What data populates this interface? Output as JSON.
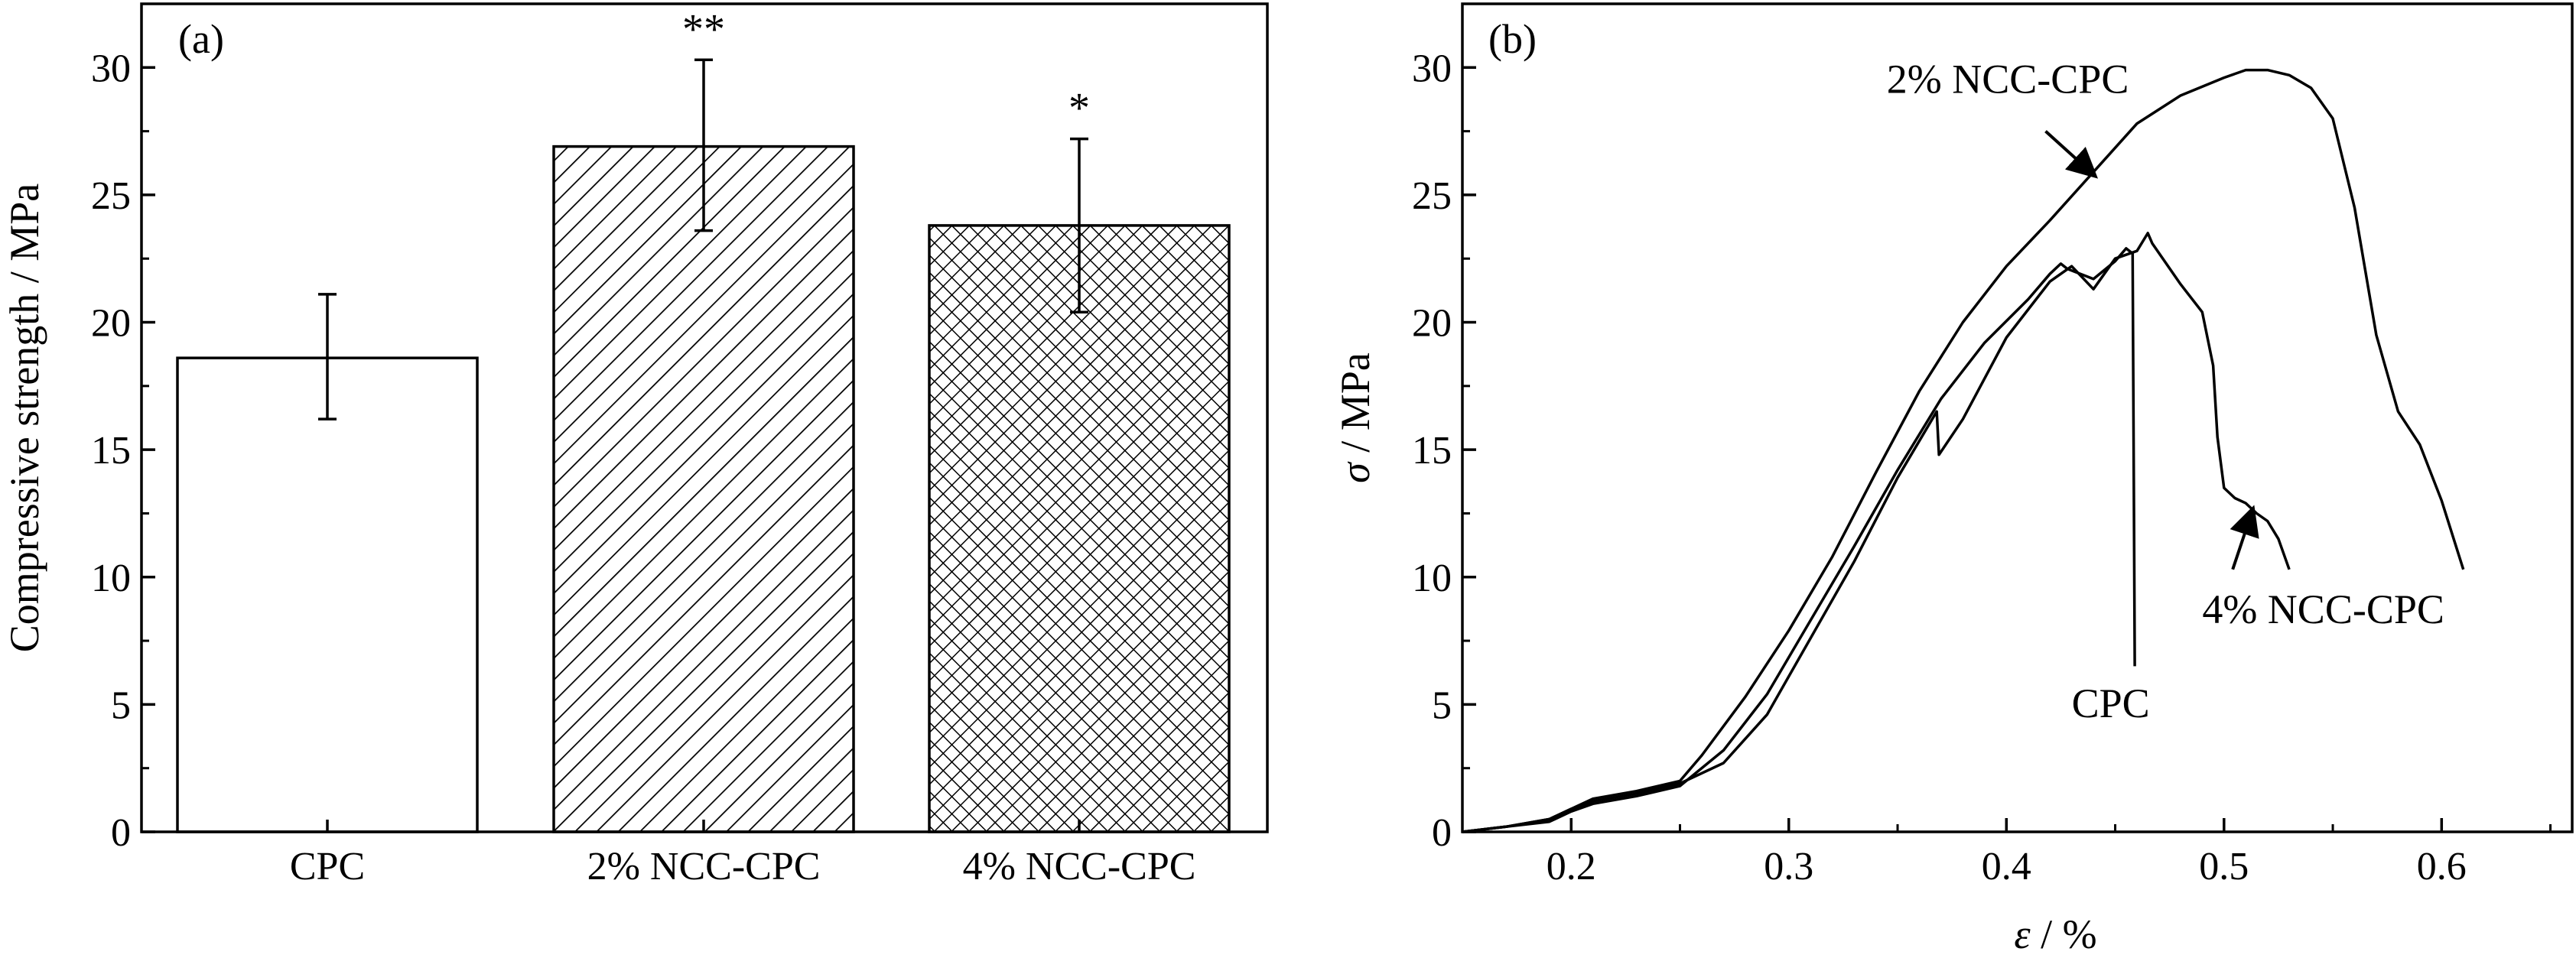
{
  "chart_data": [
    {
      "type": "bar",
      "panel_label": "(a)",
      "categories": [
        "CPC",
        "2% NCC-CPC",
        "4% NCC-CPC"
      ],
      "values": [
        18.6,
        26.9,
        23.8
      ],
      "error_low": [
        16.2,
        23.6,
        20.4
      ],
      "error_high": [
        21.1,
        30.3,
        27.2
      ],
      "significance": [
        "",
        "**",
        "*"
      ],
      "bar_fill": [
        "none",
        "diagonal-hatch",
        "cross-hatch"
      ],
      "ylabel": "Compressive strength / MPa",
      "xlabel": "",
      "ylim": [
        0,
        32.5
      ],
      "yticks": [
        0,
        5,
        10,
        15,
        20,
        25,
        30
      ],
      "grid": false,
      "colors": {
        "line": "#000000",
        "background": "#ffffff"
      }
    },
    {
      "type": "line",
      "panel_label": "(b)",
      "xlabel_symbol": "ε",
      "xlabel_unit": " / %",
      "ylabel_symbol": "σ",
      "ylabel_unit": " / MPa",
      "xlim": [
        0.15,
        0.66
      ],
      "ylim": [
        0,
        32.5
      ],
      "xticks": [
        0.2,
        0.3,
        0.4,
        0.5,
        0.6
      ],
      "yticks": [
        0,
        5,
        10,
        15,
        20,
        25,
        30
      ],
      "grid": false,
      "series": [
        {
          "name": "2% NCC-CPC",
          "x": [
            0.15,
            0.17,
            0.19,
            0.2,
            0.21,
            0.23,
            0.25,
            0.26,
            0.28,
            0.3,
            0.32,
            0.34,
            0.36,
            0.38,
            0.4,
            0.42,
            0.44,
            0.46,
            0.48,
            0.5,
            0.51,
            0.52,
            0.53,
            0.54,
            0.55,
            0.56,
            0.57,
            0.58,
            0.59,
            0.6,
            0.61
          ],
          "y": [
            0.0,
            0.2,
            0.5,
            0.9,
            1.3,
            1.6,
            2.0,
            3.0,
            5.3,
            7.9,
            10.8,
            14.1,
            17.3,
            20.0,
            22.2,
            24.0,
            25.9,
            27.8,
            28.9,
            29.6,
            29.9,
            29.9,
            29.7,
            29.2,
            28.0,
            24.5,
            19.5,
            16.5,
            15.2,
            13.0,
            10.3
          ]
        },
        {
          "name": "4% NCC-CPC",
          "x": [
            0.15,
            0.17,
            0.19,
            0.2,
            0.21,
            0.23,
            0.25,
            0.27,
            0.29,
            0.31,
            0.33,
            0.35,
            0.368,
            0.369,
            0.38,
            0.4,
            0.42,
            0.43,
            0.44,
            0.45,
            0.46,
            0.465,
            0.467,
            0.48,
            0.49,
            0.495,
            0.497,
            0.5,
            0.505,
            0.51,
            0.515,
            0.52,
            0.525,
            0.53
          ],
          "y": [
            0.0,
            0.2,
            0.5,
            0.9,
            1.2,
            1.5,
            1.9,
            2.7,
            4.6,
            7.6,
            10.6,
            13.9,
            16.5,
            14.8,
            16.2,
            19.4,
            21.6,
            22.2,
            21.3,
            22.5,
            22.8,
            23.5,
            23.1,
            21.5,
            20.4,
            18.3,
            15.5,
            13.5,
            13.1,
            12.9,
            12.5,
            12.2,
            11.5,
            10.3
          ]
        },
        {
          "name": "CPC",
          "x": [
            0.15,
            0.17,
            0.19,
            0.2,
            0.21,
            0.23,
            0.25,
            0.27,
            0.29,
            0.31,
            0.33,
            0.35,
            0.37,
            0.39,
            0.41,
            0.42,
            0.425,
            0.428,
            0.44,
            0.45,
            0.455,
            0.458,
            0.459
          ],
          "y": [
            0.0,
            0.2,
            0.4,
            0.8,
            1.1,
            1.4,
            1.8,
            3.2,
            5.4,
            8.3,
            11.2,
            14.2,
            17.0,
            19.2,
            20.9,
            21.9,
            22.3,
            22.1,
            21.7,
            22.4,
            22.9,
            22.7,
            6.5
          ]
        }
      ],
      "annotations": [
        {
          "text": "2% NCC-CPC",
          "target": "2% NCC-CPC"
        },
        {
          "text": "4% NCC-CPC",
          "target": "4% NCC-CPC"
        },
        {
          "text": "CPC",
          "target": "CPC"
        }
      ],
      "colors": {
        "line": "#000000",
        "background": "#ffffff"
      }
    }
  ]
}
